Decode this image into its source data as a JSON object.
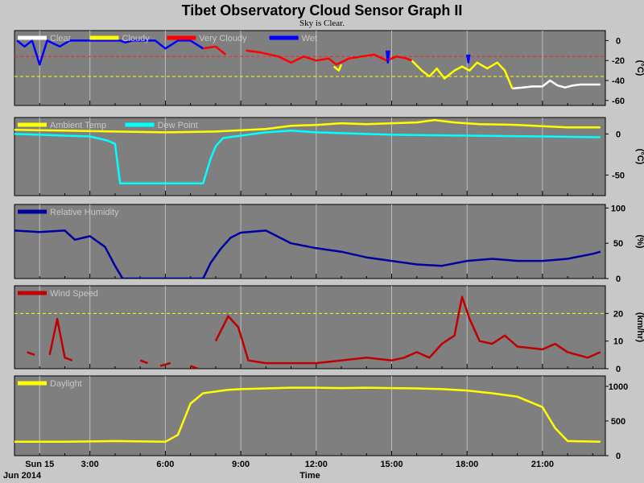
{
  "title": "Tibet Observatory Cloud Sensor Graph II",
  "subtitle": "Sky is Clear.",
  "x_axis": {
    "label": "Time",
    "period": "Jun 2014",
    "range": [
      0,
      23.5
    ],
    "ticks": [
      {
        "hour": 1,
        "label": "Sun 15"
      },
      {
        "hour": 3,
        "label": "3:00"
      },
      {
        "hour": 6,
        "label": "6:00"
      },
      {
        "hour": 9,
        "label": "9:00"
      },
      {
        "hour": 12,
        "label": "12:00"
      },
      {
        "hour": 15,
        "label": "15:00"
      },
      {
        "hour": 18,
        "label": "18:00"
      },
      {
        "hour": 21,
        "label": "21:00"
      }
    ]
  },
  "chart_data": [
    {
      "type": "line",
      "panel": "sky",
      "ylim": [
        -65,
        10
      ],
      "yticks": [
        0,
        -20,
        -40,
        -60
      ],
      "unit": "(°C)",
      "thresholds": [
        {
          "y": -16,
          "color": "#ff2020",
          "style": "dashed"
        },
        {
          "y": -36,
          "color": "#ffff00",
          "style": "dashed"
        }
      ],
      "series": [
        {
          "name": "Clear",
          "color": "#ffffff",
          "segments": [
            [
              [
                19.8,
                -48
              ],
              [
                20.2,
                -47
              ],
              [
                20.6,
                -46
              ],
              [
                21.0,
                -46
              ],
              [
                21.3,
                -40
              ],
              [
                21.6,
                -45
              ],
              [
                21.9,
                -47
              ],
              [
                22.2,
                -45
              ],
              [
                22.5,
                -44
              ],
              [
                22.8,
                -44
              ],
              [
                23.3,
                -44
              ]
            ]
          ]
        },
        {
          "name": "Cloudy",
          "color": "#ffff00",
          "segments": [
            [
              [
                12.7,
                -26
              ],
              [
                12.9,
                -30
              ],
              [
                13.0,
                -24
              ]
            ],
            [
              [
                15.8,
                -20
              ],
              [
                16.2,
                -30
              ],
              [
                16.5,
                -36
              ],
              [
                16.8,
                -28
              ],
              [
                17.1,
                -38
              ],
              [
                17.5,
                -30
              ],
              [
                17.8,
                -26
              ],
              [
                18.1,
                -30
              ],
              [
                18.4,
                -22
              ],
              [
                18.8,
                -28
              ],
              [
                19.2,
                -22
              ],
              [
                19.5,
                -30
              ],
              [
                19.8,
                -48
              ]
            ]
          ]
        },
        {
          "name": "Very Cloudy",
          "color": "#ff0000",
          "segments": [
            [
              [
                7.5,
                -8
              ],
              [
                8.0,
                -6
              ],
              [
                8.4,
                -14
              ]
            ],
            [
              [
                9.2,
                -10
              ],
              [
                9.8,
                -12
              ],
              [
                10.5,
                -16
              ],
              [
                11.0,
                -22
              ],
              [
                11.5,
                -16
              ],
              [
                12.0,
                -20
              ],
              [
                12.5,
                -18
              ],
              [
                12.8,
                -24
              ],
              [
                13.3,
                -18
              ],
              [
                13.8,
                -16
              ],
              [
                14.3,
                -14
              ],
              [
                14.8,
                -20
              ],
              [
                15.2,
                -16
              ],
              [
                15.6,
                -18
              ],
              [
                15.8,
                -20
              ]
            ]
          ]
        },
        {
          "name": "Wet",
          "color": "#0000ff",
          "segments": [
            [
              [
                0.1,
                0
              ],
              [
                0.4,
                -6
              ],
              [
                0.7,
                0
              ],
              [
                1.0,
                -24
              ],
              [
                1.3,
                0
              ],
              [
                1.8,
                -6
              ],
              [
                2.2,
                0
              ],
              [
                3.0,
                0
              ],
              [
                4.2,
                0
              ],
              [
                4.4,
                -2
              ],
              [
                4.7,
                0
              ],
              [
                5.6,
                0
              ],
              [
                6.0,
                -8
              ],
              [
                6.5,
                0
              ],
              [
                7.0,
                0
              ],
              [
                7.5,
                -8
              ]
            ],
            [
              [
                14.8,
                -10
              ],
              [
                14.85,
                -22
              ],
              [
                14.9,
                -10
              ]
            ],
            [
              [
                18.0,
                -14
              ],
              [
                18.05,
                -22
              ],
              [
                18.1,
                -14
              ]
            ]
          ]
        }
      ]
    },
    {
      "type": "line",
      "panel": "temperature",
      "ylim": [
        -75,
        20
      ],
      "yticks": [
        0,
        -50
      ],
      "unit": "(°C)",
      "series": [
        {
          "name": "Ambient Temp",
          "color": "#ffff00",
          "segments": [
            [
              [
                0,
                5
              ],
              [
                2,
                4
              ],
              [
                4,
                3
              ],
              [
                6,
                2
              ],
              [
                8,
                3
              ],
              [
                10,
                6
              ],
              [
                11,
                10
              ],
              [
                12,
                11
              ],
              [
                13,
                13
              ],
              [
                14,
                12
              ],
              [
                15,
                13
              ],
              [
                16,
                14
              ],
              [
                16.7,
                17
              ],
              [
                17.5,
                14
              ],
              [
                18.5,
                12
              ],
              [
                20,
                11
              ],
              [
                22,
                8
              ],
              [
                23.3,
                8
              ]
            ]
          ]
        },
        {
          "name": "Dew Point",
          "color": "#00ffff",
          "segments": [
            [
              [
                0,
                0
              ],
              [
                1,
                -1
              ],
              [
                2,
                -2
              ],
              [
                3,
                -3
              ],
              [
                3.7,
                -8
              ],
              [
                4.0,
                -12
              ],
              [
                4.2,
                -60
              ],
              [
                5.5,
                -60
              ],
              [
                6.5,
                -60
              ],
              [
                7.5,
                -60
              ],
              [
                7.8,
                -30
              ],
              [
                8.0,
                -15
              ],
              [
                8.3,
                -5
              ],
              [
                9,
                -2
              ],
              [
                10,
                2
              ],
              [
                11,
                4
              ],
              [
                12,
                2
              ],
              [
                13,
                1
              ],
              [
                15,
                -1
              ],
              [
                18,
                -2
              ],
              [
                21,
                -3
              ],
              [
                23.3,
                -4
              ]
            ]
          ]
        }
      ]
    },
    {
      "type": "line",
      "panel": "humidity",
      "ylim": [
        0,
        105
      ],
      "yticks": [
        100,
        50,
        0
      ],
      "unit": "(%)",
      "series": [
        {
          "name": "Relative Humidity",
          "color": "#0000a0",
          "segments": [
            [
              [
                0,
                68
              ],
              [
                1,
                66
              ],
              [
                2,
                68
              ],
              [
                2.4,
                55
              ],
              [
                3.0,
                60
              ],
              [
                3.6,
                45
              ],
              [
                4.0,
                18
              ],
              [
                4.3,
                0
              ],
              [
                5.5,
                0
              ],
              [
                7.5,
                0
              ],
              [
                7.8,
                22
              ],
              [
                8.2,
                42
              ],
              [
                8.6,
                58
              ],
              [
                9,
                65
              ],
              [
                10,
                68
              ],
              [
                11,
                50
              ],
              [
                12,
                43
              ],
              [
                13,
                38
              ],
              [
                14,
                30
              ],
              [
                15,
                25
              ],
              [
                16,
                20
              ],
              [
                17,
                18
              ],
              [
                18,
                25
              ],
              [
                19,
                28
              ],
              [
                20,
                25
              ],
              [
                21,
                25
              ],
              [
                22,
                28
              ],
              [
                23,
                35
              ],
              [
                23.3,
                38
              ]
            ]
          ]
        }
      ]
    },
    {
      "type": "line",
      "panel": "wind",
      "ylim": [
        0,
        30
      ],
      "yticks": [
        20,
        10,
        0
      ],
      "unit": "(km/hr)",
      "thresholds": [
        {
          "y": 20,
          "color": "#ffff00",
          "style": "dashed"
        }
      ],
      "series": [
        {
          "name": "Wind Speed",
          "color": "#c00000",
          "segments": [
            [
              [
                0.5,
                6
              ],
              [
                0.8,
                5
              ]
            ],
            [
              [
                1.4,
                5
              ],
              [
                1.7,
                18
              ],
              [
                2.0,
                4
              ],
              [
                2.3,
                3
              ]
            ],
            [
              [
                5.0,
                3
              ],
              [
                5.3,
                2
              ]
            ],
            [
              [
                5.8,
                1
              ],
              [
                6.2,
                2
              ]
            ],
            [
              [
                7.0,
                1
              ],
              [
                7.3,
                0
              ]
            ],
            [
              [
                8.0,
                10
              ],
              [
                8.5,
                19
              ],
              [
                8.9,
                15
              ],
              [
                9.3,
                3
              ],
              [
                10,
                2
              ],
              [
                11,
                2
              ],
              [
                12,
                2
              ],
              [
                13,
                3
              ],
              [
                14,
                4
              ],
              [
                15,
                3
              ],
              [
                15.5,
                4
              ],
              [
                16,
                6
              ],
              [
                16.5,
                4
              ],
              [
                17,
                9
              ],
              [
                17.5,
                12
              ],
              [
                17.8,
                26
              ],
              [
                18.1,
                18
              ],
              [
                18.5,
                10
              ],
              [
                19,
                9
              ],
              [
                19.5,
                12
              ],
              [
                20,
                8
              ],
              [
                21,
                7
              ],
              [
                21.5,
                9
              ],
              [
                22,
                6
              ],
              [
                22.8,
                4
              ],
              [
                23.3,
                6
              ]
            ]
          ]
        }
      ]
    },
    {
      "type": "line",
      "panel": "daylight",
      "ylim": [
        0,
        1150
      ],
      "yticks": [
        1000,
        500,
        0
      ],
      "unit": "",
      "series": [
        {
          "name": "Daylight",
          "color": "#ffff00",
          "segments": [
            [
              [
                0,
                200
              ],
              [
                2,
                200
              ],
              [
                4,
                210
              ],
              [
                6,
                200
              ],
              [
                6.5,
                300
              ],
              [
                7.0,
                750
              ],
              [
                7.5,
                900
              ],
              [
                8.5,
                950
              ],
              [
                9,
                960
              ],
              [
                10,
                970
              ],
              [
                11,
                980
              ],
              [
                12,
                980
              ],
              [
                13,
                975
              ],
              [
                14,
                980
              ],
              [
                15,
                975
              ],
              [
                16,
                970
              ],
              [
                17,
                960
              ],
              [
                18,
                940
              ],
              [
                19,
                900
              ],
              [
                20,
                850
              ],
              [
                21,
                700
              ],
              [
                21.5,
                400
              ],
              [
                22,
                210
              ],
              [
                23.3,
                200
              ]
            ]
          ]
        }
      ]
    }
  ]
}
